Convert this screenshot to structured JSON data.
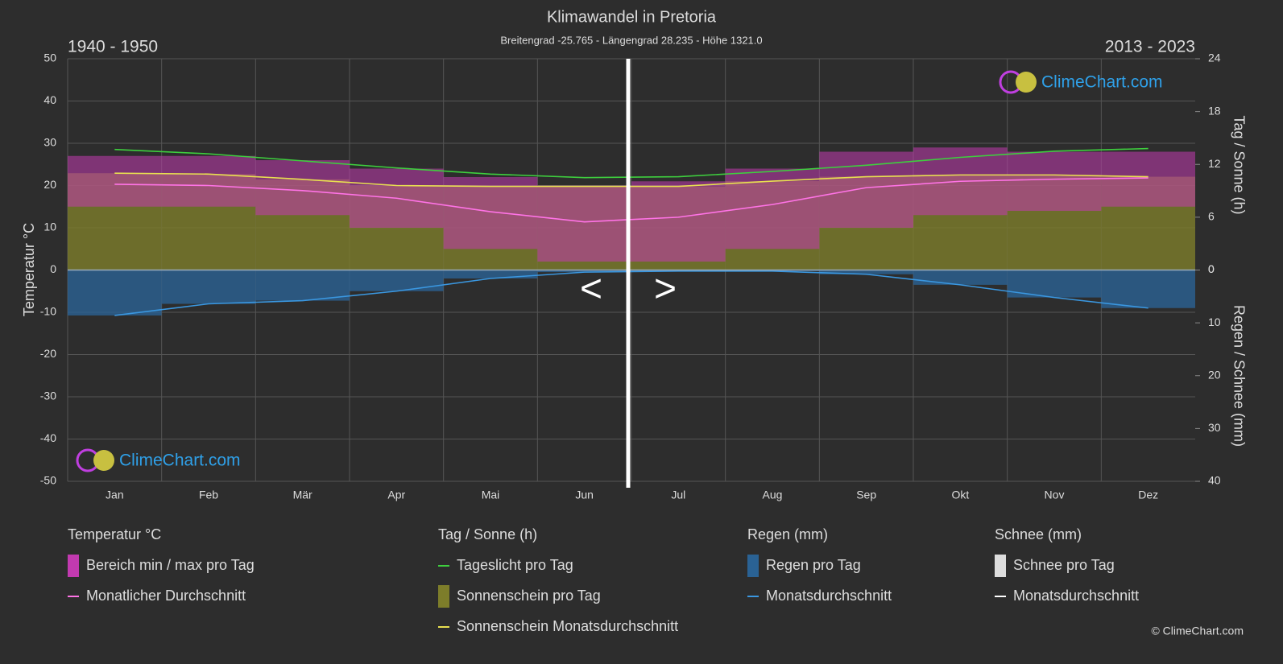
{
  "chart_data": {
    "type": "line",
    "title": "Klimawandel in Pretoria",
    "subtitle": "Breitengrad -25.765 - Längengrad 28.235 - Höhe 1321.0",
    "period_left": "1940 - 1950",
    "period_right": "2013 - 2023",
    "y_label": "Temperatur °C",
    "y2_label": "Tag / Sonne (h)",
    "y3_label": "Regen / Schnee (mm)",
    "categories": [
      "Jan",
      "Feb",
      "Mär",
      "Apr",
      "Mai",
      "Jun",
      "Jul",
      "Aug",
      "Sep",
      "Okt",
      "Nov",
      "Dez"
    ],
    "ylim": [
      -50,
      50
    ],
    "yticks": [
      -50,
      -40,
      -30,
      -20,
      -10,
      0,
      10,
      20,
      30,
      40,
      50
    ],
    "y2lim": [
      -24,
      24
    ],
    "y2ticks": [
      0,
      6,
      12,
      18,
      24
    ],
    "y3lim": [
      40,
      -40
    ],
    "y3ticks": [
      0,
      10,
      20,
      30,
      40
    ],
    "grid": true,
    "legend": [
      {
        "title": "Temperatur °C",
        "series": [
          {
            "name": "Bereich min / max pro Tag",
            "type": "range",
            "color": "#c23ab0",
            "min": [
              15,
              15,
              13,
              10,
              5,
              2,
              2,
              5,
              10,
              13,
              14,
              15
            ],
            "max": [
              27,
              27,
              26,
              24,
              22,
              20,
              21,
              24,
              28,
              29,
              28,
              28
            ]
          },
          {
            "name": "Monatlicher Durchschnitt",
            "type": "line",
            "color": "#ff73e6",
            "values": [
              20.3,
              20,
              18.8,
              17,
              13.8,
              11.4,
              12.5,
              15.5,
              19.5,
              21,
              21.5,
              21.8
            ]
          }
        ]
      },
      {
        "title": "Tag / Sonne (h)",
        "series": [
          {
            "name": "Tageslicht pro Tag",
            "type": "line",
            "axis": "y2",
            "color": "#3ecf3e",
            "values": [
              13.7,
              13.2,
              12.4,
              11.6,
              10.9,
              10.5,
              10.6,
              11.2,
              11.9,
              12.8,
              13.5,
              13.8
            ]
          },
          {
            "name": "Sonnenschein pro Tag",
            "type": "bar",
            "axis": "y2",
            "color": "#7d7d2a",
            "values": [
              11,
              10.9,
              10.3,
              9.6,
              9.5,
              9.5,
              9.5,
              10.1,
              10.6,
              10.8,
              10.8,
              10.6
            ]
          },
          {
            "name": "Sonnenschein Monatsdurchschnitt",
            "type": "line",
            "axis": "y2",
            "color": "#e8e050",
            "values": [
              11,
              10.9,
              10.3,
              9.6,
              9.5,
              9.5,
              9.5,
              10.1,
              10.6,
              10.8,
              10.8,
              10.6
            ]
          }
        ]
      },
      {
        "title": "Regen (mm)",
        "series": [
          {
            "name": "Regen pro Tag",
            "type": "bar",
            "axis": "y3",
            "color": "#2a6294",
            "values": [
              8.6,
              6.4,
              5.8,
              4,
              1.6,
              0.4,
              0.2,
              0.2,
              0.8,
              2.8,
              5.2,
              7.2
            ]
          },
          {
            "name": "Monatsdurchschnitt",
            "type": "line",
            "axis": "y3",
            "color": "#3a97e0",
            "values": [
              8.6,
              6.4,
              5.8,
              4,
              1.6,
              0.4,
              0.2,
              0.2,
              0.8,
              2.8,
              5.2,
              7.2
            ]
          }
        ]
      },
      {
        "title": "Schnee (mm)",
        "series": [
          {
            "name": "Schnee pro Tag",
            "type": "bar",
            "color": "#dddddd"
          },
          {
            "name": "Monatsdurchschnitt",
            "type": "line",
            "color": "#ffffff"
          }
        ]
      }
    ],
    "nav": [
      "<",
      ">"
    ],
    "watermark": "ClimeChart.com",
    "copyright": "© ClimeChart.com"
  }
}
